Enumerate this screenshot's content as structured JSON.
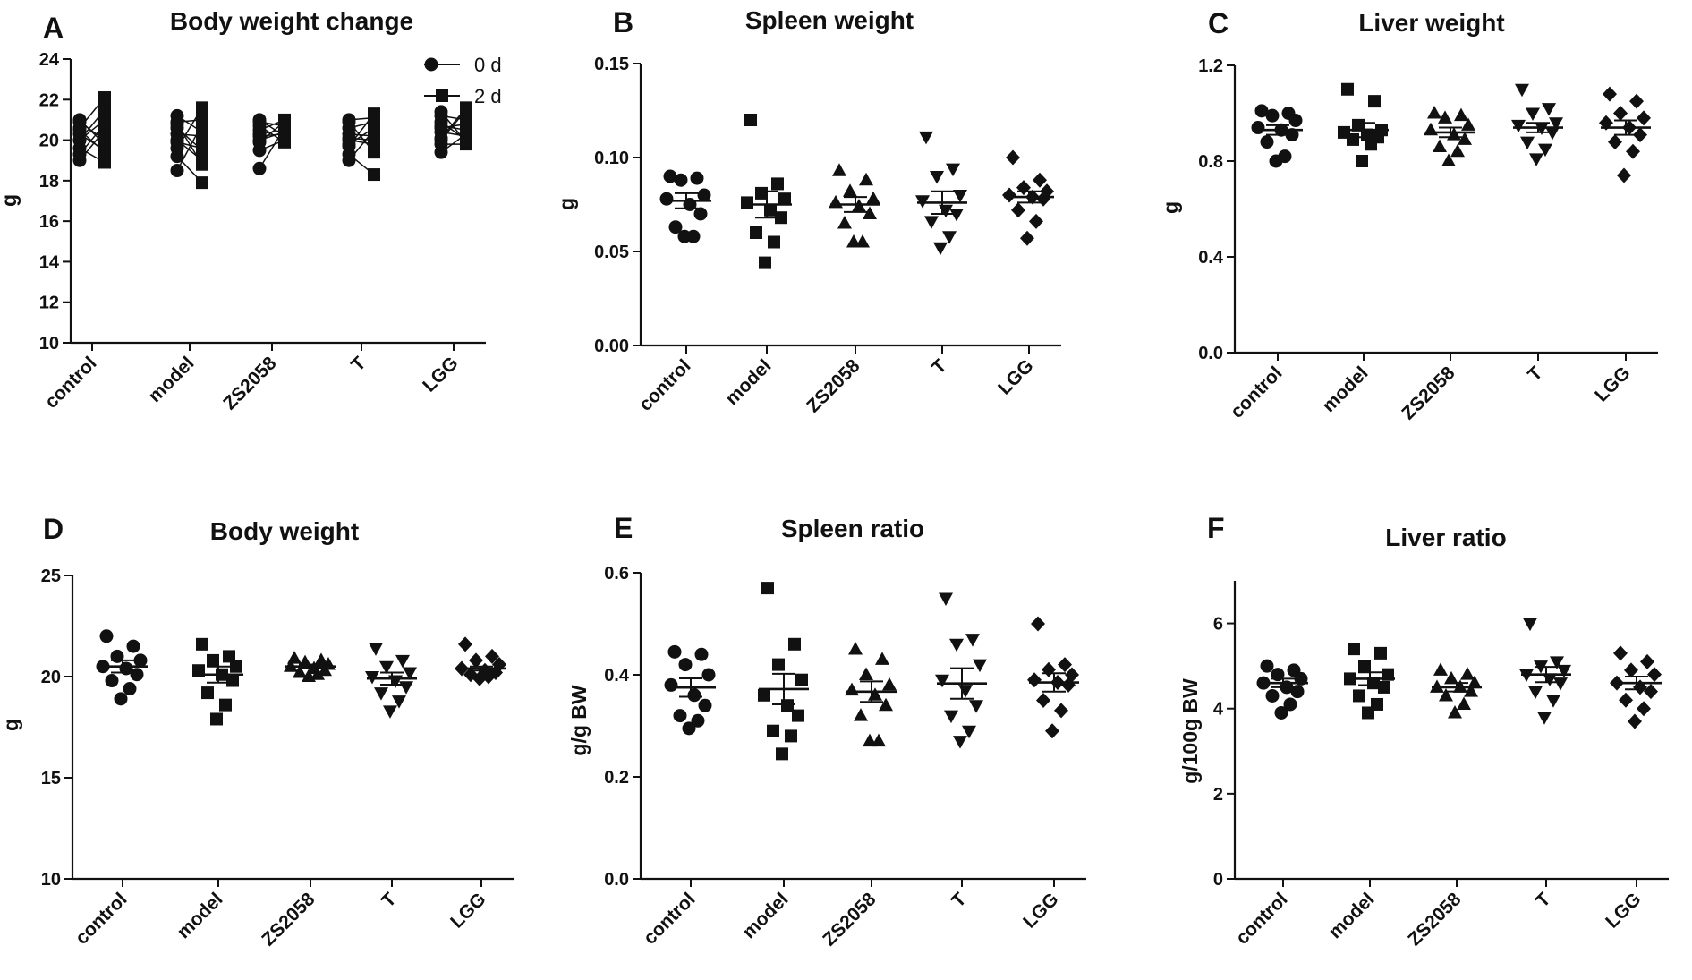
{
  "chart_data": [
    {
      "id": "A",
      "panel_label": "A",
      "type": "scatter",
      "title": "Body weight change",
      "xlabel": "",
      "ylabel": "g",
      "categories": [
        "control",
        "model",
        "ZS2058",
        "T",
        "LGG"
      ],
      "ylim": [
        10,
        24
      ],
      "yticks": [
        "10",
        "12",
        "14",
        "16",
        "18",
        "20",
        "22",
        "24"
      ],
      "tick_values": [
        10,
        12,
        14,
        16,
        18,
        20,
        22,
        24
      ],
      "legend": [
        "0 d",
        "2 d"
      ],
      "paired": true,
      "series": [
        {
          "name": "0 d",
          "marker": "circle",
          "values": [
            [
              19.0,
              19.6,
              20.0,
              20.3,
              20.6,
              20.9,
              21.0,
              20.0,
              19.3,
              20.5
            ],
            [
              18.5,
              19.2,
              19.6,
              20.0,
              20.3,
              20.6,
              20.9,
              21.2,
              19.9,
              20.8
            ],
            [
              18.6,
              19.5,
              19.9,
              20.2,
              20.5,
              20.7,
              20.9,
              21.0,
              20.3,
              20.0
            ],
            [
              19.0,
              19.3,
              19.7,
              20.0,
              20.3,
              20.6,
              20.9,
              21.0,
              20.1,
              19.8
            ],
            [
              19.4,
              19.8,
              20.1,
              20.4,
              20.6,
              20.9,
              21.2,
              21.4,
              20.0,
              20.7
            ]
          ]
        },
        {
          "name": "2 d",
          "marker": "square",
          "values": [
            [
              20.5,
              18.9,
              21.5,
              19.5,
              22.1,
              20.0,
              19.8,
              21.0,
              20.8,
              19.4
            ],
            [
              20.8,
              17.9,
              21.6,
              19.0,
              20.2,
              19.5,
              21.0,
              20.4,
              19.6,
              18.8
            ],
            [
              20.6,
              20.0,
              20.9,
              20.3,
              21.0,
              19.9,
              20.7,
              20.2,
              20.5,
              20.4
            ],
            [
              20.5,
              18.3,
              21.3,
              19.8,
              20.2,
              20.9,
              19.4,
              21.1,
              20.0,
              20.6
            ],
            [
              20.3,
              19.8,
              21.6,
              20.2,
              20.8,
              20.0,
              21.0,
              19.9,
              21.5,
              20.5
            ]
          ]
        }
      ]
    },
    {
      "id": "B",
      "panel_label": "B",
      "type": "scatter",
      "title": "Spleen weight",
      "xlabel": "",
      "ylabel": "g",
      "categories": [
        "control",
        "model",
        "ZS2058",
        "T",
        "LGG"
      ],
      "ylim": [
        0,
        0.15
      ],
      "yticks": [
        "0.00",
        "0.05",
        "0.10",
        "0.15"
      ],
      "tick_values": [
        0,
        0.05,
        0.1,
        0.15
      ],
      "markers": [
        "circle",
        "square",
        "triangle",
        "triangle-down",
        "diamond"
      ],
      "groups": [
        {
          "name": "control",
          "mean": 0.077,
          "sem": 0.004,
          "values": [
            0.09,
            0.089,
            0.088,
            0.08,
            0.078,
            0.075,
            0.07,
            0.063,
            0.058,
            0.058
          ]
        },
        {
          "name": "model",
          "mean": 0.075,
          "sem": 0.007,
          "values": [
            0.12,
            0.086,
            0.081,
            0.078,
            0.076,
            0.072,
            0.068,
            0.06,
            0.055,
            0.044
          ]
        },
        {
          "name": "ZS2058",
          "mean": 0.075,
          "sem": 0.004,
          "values": [
            0.093,
            0.088,
            0.082,
            0.078,
            0.076,
            0.074,
            0.07,
            0.065,
            0.055,
            0.055
          ]
        },
        {
          "name": "T",
          "mean": 0.076,
          "sem": 0.006,
          "values": [
            0.111,
            0.094,
            0.09,
            0.08,
            0.077,
            0.072,
            0.07,
            0.066,
            0.058,
            0.052
          ]
        },
        {
          "name": "LGG",
          "mean": 0.079,
          "sem": 0.003,
          "values": [
            0.1,
            0.088,
            0.084,
            0.082,
            0.08,
            0.079,
            0.078,
            0.072,
            0.066,
            0.057
          ]
        }
      ]
    },
    {
      "id": "C",
      "panel_label": "C",
      "type": "scatter",
      "title": "Liver weight",
      "xlabel": "",
      "ylabel": "g",
      "categories": [
        "control",
        "model",
        "ZS2058",
        "T",
        "LGG"
      ],
      "ylim": [
        0,
        1.2
      ],
      "yticks": [
        "0.0",
        "0.4",
        "0.8",
        "1.2"
      ],
      "tick_values": [
        0,
        0.4,
        0.8,
        1.2
      ],
      "markers": [
        "circle",
        "square",
        "triangle",
        "triangle-down",
        "diamond"
      ],
      "groups": [
        {
          "name": "control",
          "mean": 0.93,
          "sem": 0.02,
          "values": [
            1.01,
            1.0,
            0.99,
            0.97,
            0.94,
            0.93,
            0.91,
            0.88,
            0.82,
            0.8
          ]
        },
        {
          "name": "model",
          "mean": 0.93,
          "sem": 0.03,
          "values": [
            1.1,
            1.05,
            0.95,
            0.93,
            0.92,
            0.91,
            0.9,
            0.89,
            0.87,
            0.8
          ]
        },
        {
          "name": "ZS2058",
          "mean": 0.92,
          "sem": 0.02,
          "values": [
            1.0,
            0.99,
            0.98,
            0.95,
            0.93,
            0.91,
            0.89,
            0.86,
            0.84,
            0.8
          ]
        },
        {
          "name": "T",
          "mean": 0.94,
          "sem": 0.02,
          "values": [
            1.1,
            1.02,
            1.0,
            0.96,
            0.95,
            0.94,
            0.92,
            0.88,
            0.85,
            0.81
          ]
        },
        {
          "name": "LGG",
          "mean": 0.94,
          "sem": 0.03,
          "values": [
            1.08,
            1.05,
            1.0,
            0.98,
            0.96,
            0.94,
            0.91,
            0.88,
            0.84,
            0.74
          ]
        }
      ]
    },
    {
      "id": "D",
      "panel_label": "D",
      "type": "scatter",
      "title": "Body weight",
      "xlabel": "",
      "ylabel": "g",
      "categories": [
        "control",
        "model",
        "ZS2058",
        "T",
        "LGG"
      ],
      "ylim": [
        10,
        25
      ],
      "yticks": [
        "10",
        "15",
        "20",
        "25"
      ],
      "tick_values": [
        10,
        15,
        20,
        25
      ],
      "markers": [
        "circle",
        "square",
        "triangle",
        "triangle-down",
        "diamond"
      ],
      "groups": [
        {
          "name": "control",
          "mean": 20.5,
          "sem": 0.3,
          "values": [
            22.0,
            21.5,
            21.0,
            20.8,
            20.5,
            20.4,
            20.1,
            19.8,
            19.4,
            18.9
          ]
        },
        {
          "name": "model",
          "mean": 20.1,
          "sem": 0.4,
          "values": [
            21.6,
            21.0,
            20.8,
            20.5,
            20.3,
            20.1,
            19.8,
            19.2,
            18.6,
            17.9
          ]
        },
        {
          "name": "ZS2058",
          "mean": 20.5,
          "sem": 0.1,
          "values": [
            20.9,
            20.8,
            20.7,
            20.6,
            20.5,
            20.4,
            20.3,
            20.2,
            20.1,
            20.0
          ]
        },
        {
          "name": "T",
          "mean": 19.9,
          "sem": 0.3,
          "values": [
            21.4,
            20.8,
            20.5,
            20.2,
            20.0,
            19.8,
            19.5,
            19.2,
            18.8,
            18.3
          ]
        },
        {
          "name": "LGG",
          "mean": 20.4,
          "sem": 0.1,
          "values": [
            21.6,
            21.0,
            20.8,
            20.6,
            20.4,
            20.3,
            20.2,
            20.1,
            20.0,
            19.9
          ]
        }
      ]
    },
    {
      "id": "E",
      "panel_label": "E",
      "type": "scatter",
      "title": "Spleen ratio",
      "xlabel": "",
      "ylabel": "g/g BW",
      "categories": [
        "control",
        "model",
        "ZS2058",
        "T",
        "LGG"
      ],
      "ylim": [
        0,
        0.6
      ],
      "yticks": [
        "0.0",
        "0.2",
        "0.4",
        "0.6"
      ],
      "tick_values": [
        0,
        0.2,
        0.4,
        0.6
      ],
      "markers": [
        "circle",
        "square",
        "triangle",
        "triangle-down",
        "diamond"
      ],
      "groups": [
        {
          "name": "control",
          "mean": 0.375,
          "sem": 0.018,
          "values": [
            0.445,
            0.44,
            0.42,
            0.4,
            0.38,
            0.36,
            0.34,
            0.32,
            0.31,
            0.295
          ]
        },
        {
          "name": "model",
          "mean": 0.372,
          "sem": 0.03,
          "values": [
            0.57,
            0.46,
            0.42,
            0.39,
            0.36,
            0.34,
            0.32,
            0.29,
            0.28,
            0.245
          ]
        },
        {
          "name": "ZS2058",
          "mean": 0.367,
          "sem": 0.02,
          "values": [
            0.45,
            0.43,
            0.4,
            0.38,
            0.37,
            0.36,
            0.34,
            0.32,
            0.27,
            0.27
          ]
        },
        {
          "name": "T",
          "mean": 0.383,
          "sem": 0.03,
          "values": [
            0.55,
            0.47,
            0.46,
            0.42,
            0.39,
            0.37,
            0.34,
            0.32,
            0.29,
            0.27
          ]
        },
        {
          "name": "LGG",
          "mean": 0.385,
          "sem": 0.018,
          "values": [
            0.5,
            0.42,
            0.41,
            0.4,
            0.39,
            0.385,
            0.38,
            0.35,
            0.33,
            0.29
          ]
        }
      ]
    },
    {
      "id": "F",
      "panel_label": "F",
      "type": "scatter",
      "title": "Liver ratio",
      "xlabel": "",
      "ylabel": "g/100g BW",
      "categories": [
        "control",
        "model",
        "ZS2058",
        "T",
        "LGG"
      ],
      "ylim": [
        0,
        7
      ],
      "yticks": [
        "0",
        "2",
        "4",
        "6"
      ],
      "tick_values": [
        0,
        2,
        4,
        6
      ],
      "markers": [
        "circle",
        "square",
        "triangle",
        "triangle-down",
        "diamond"
      ],
      "groups": [
        {
          "name": "control",
          "mean": 4.6,
          "sem": 0.1,
          "values": [
            5.0,
            4.9,
            4.8,
            4.7,
            4.6,
            4.5,
            4.4,
            4.3,
            4.1,
            3.9
          ]
        },
        {
          "name": "model",
          "mean": 4.7,
          "sem": 0.15,
          "values": [
            5.4,
            5.3,
            5.0,
            4.8,
            4.7,
            4.6,
            4.5,
            4.3,
            4.1,
            3.9
          ]
        },
        {
          "name": "ZS2058",
          "mean": 4.5,
          "sem": 0.1,
          "values": [
            4.9,
            4.8,
            4.7,
            4.6,
            4.5,
            4.5,
            4.4,
            4.3,
            4.1,
            3.9
          ]
        },
        {
          "name": "T",
          "mean": 4.8,
          "sem": 0.18,
          "values": [
            6.0,
            5.1,
            5.0,
            4.9,
            4.8,
            4.7,
            4.6,
            4.4,
            4.2,
            3.8
          ]
        },
        {
          "name": "LGG",
          "mean": 4.6,
          "sem": 0.15,
          "values": [
            5.3,
            5.1,
            4.9,
            4.8,
            4.6,
            4.5,
            4.4,
            4.2,
            4.0,
            3.7
          ]
        }
      ]
    }
  ]
}
